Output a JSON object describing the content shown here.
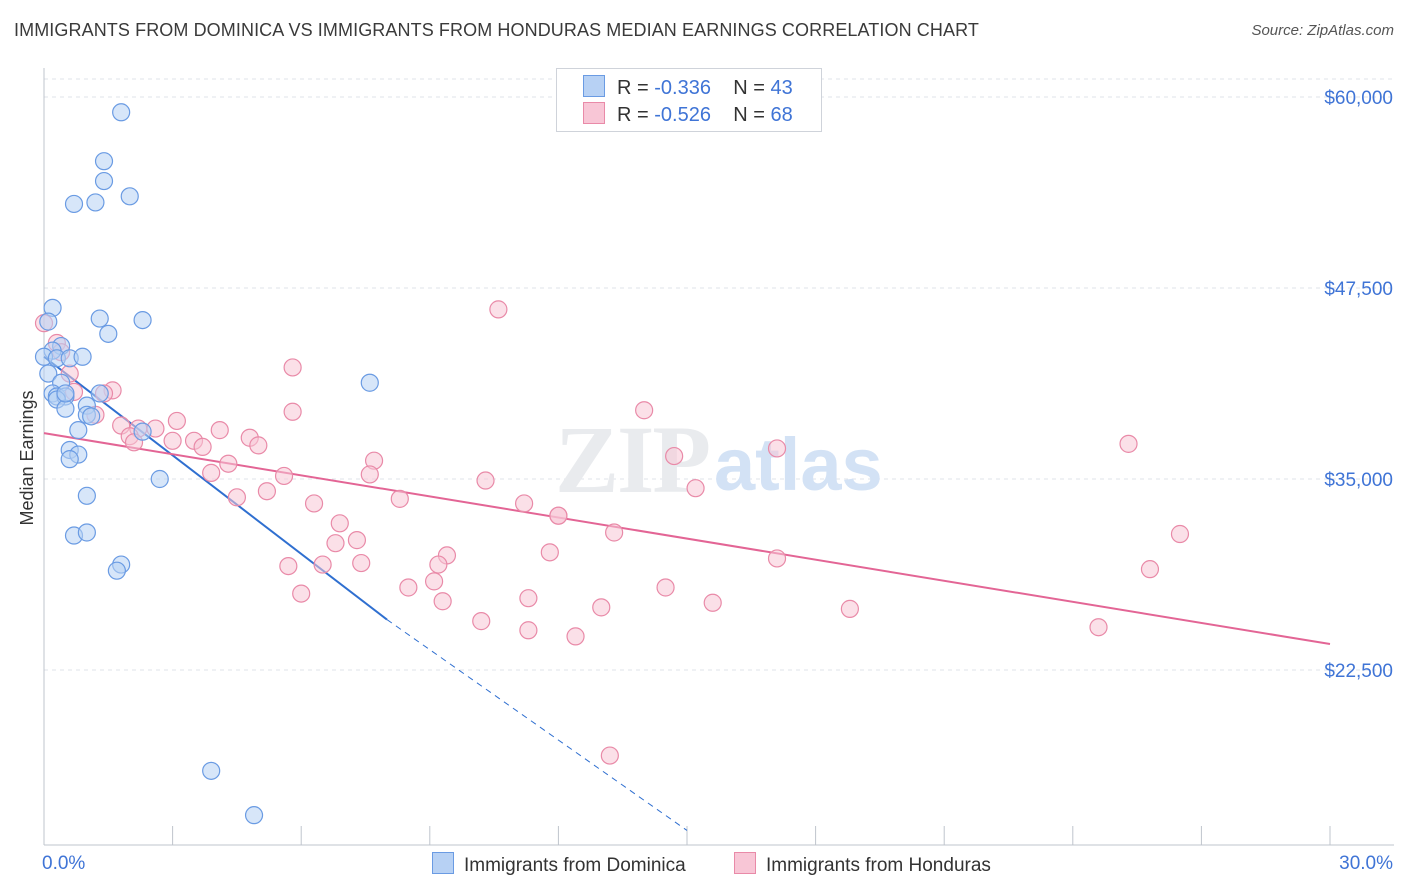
{
  "header": {
    "title": "IMMIGRANTS FROM DOMINICA VS IMMIGRANTS FROM HONDURAS MEDIAN EARNINGS CORRELATION CHART",
    "source": "Source: ZipAtlas.com"
  },
  "watermark": {
    "zip": "ZIP",
    "atlas": "atlas"
  },
  "colors": {
    "blue_fill": "#b7d1f4",
    "blue_stroke": "#6a9be3",
    "blue_line": "#2f6fd0",
    "pink_fill": "#f8c6d6",
    "pink_stroke": "#e98aa8",
    "pink_line": "#e36595",
    "accent_text": "#3f74d6",
    "grid": "#dfe3ea"
  },
  "stats_legend": {
    "rows": [
      {
        "r_label": "R =",
        "r_value": "-0.336",
        "n_label": "N =",
        "n_value": "43"
      },
      {
        "r_label": "R =",
        "r_value": "-0.526",
        "n_label": "N =",
        "n_value": "68"
      }
    ]
  },
  "chart_data": {
    "type": "scatter",
    "title": "IMMIGRANTS FROM DOMINICA VS IMMIGRANTS FROM HONDURAS MEDIAN EARNINGS CORRELATION CHART",
    "xlabel": "",
    "ylabel": "Median Earnings",
    "xlim": [
      0,
      30
    ],
    "ylim": [
      12000,
      62000
    ],
    "x_tick_labels": [
      "0.0%",
      "30.0%"
    ],
    "y_ticks": [
      22500,
      35000,
      47500,
      60000
    ],
    "y_tick_labels": [
      "$22,500",
      "$35,000",
      "$47,500",
      "$60,000"
    ],
    "grid": true,
    "legend_position": "bottom",
    "series": [
      {
        "name": "Immigrants from Dominica",
        "color": "blue",
        "r": -0.336,
        "n": 43,
        "points": [
          [
            1.8,
            59000
          ],
          [
            1.4,
            55800
          ],
          [
            1.4,
            54500
          ],
          [
            1.2,
            53100
          ],
          [
            0.7,
            53000
          ],
          [
            2.0,
            53500
          ],
          [
            0.2,
            46200
          ],
          [
            0.1,
            45300
          ],
          [
            1.3,
            45500
          ],
          [
            2.3,
            45400
          ],
          [
            1.5,
            44500
          ],
          [
            0.4,
            43700
          ],
          [
            0.2,
            43400
          ],
          [
            0.0,
            43000
          ],
          [
            0.3,
            42900
          ],
          [
            0.6,
            42900
          ],
          [
            0.1,
            41900
          ],
          [
            0.4,
            41300
          ],
          [
            7.6,
            41300
          ],
          [
            0.2,
            40600
          ],
          [
            0.3,
            40400
          ],
          [
            0.5,
            40400
          ],
          [
            0.3,
            40200
          ],
          [
            1.3,
            40600
          ],
          [
            1.0,
            39800
          ],
          [
            0.5,
            39600
          ],
          [
            1.0,
            39200
          ],
          [
            1.1,
            39100
          ],
          [
            0.8,
            38200
          ],
          [
            2.3,
            38100
          ],
          [
            0.6,
            36900
          ],
          [
            0.8,
            36600
          ],
          [
            0.6,
            36300
          ],
          [
            2.7,
            35000
          ],
          [
            1.0,
            33900
          ],
          [
            0.7,
            31300
          ],
          [
            1.0,
            31500
          ],
          [
            1.8,
            29400
          ],
          [
            1.7,
            29000
          ],
          [
            3.9,
            15900
          ],
          [
            4.9,
            13000
          ],
          [
            0.5,
            40600
          ],
          [
            0.9,
            43000
          ]
        ],
        "trend": {
          "x0": 0.0,
          "y0": 43000,
          "x1": 8.0,
          "y1": 25800,
          "dash_to_x": 15.0,
          "dash_to_y": 12000
        }
      },
      {
        "name": "Immigrants from Honduras",
        "color": "pink",
        "r": -0.526,
        "n": 68,
        "points": [
          [
            0.0,
            45200
          ],
          [
            0.3,
            43900
          ],
          [
            0.6,
            41900
          ],
          [
            1.6,
            40800
          ],
          [
            0.7,
            40700
          ],
          [
            1.4,
            40600
          ],
          [
            1.2,
            39200
          ],
          [
            1.8,
            38500
          ],
          [
            2.2,
            38300
          ],
          [
            2.6,
            38300
          ],
          [
            3.1,
            38800
          ],
          [
            4.1,
            38200
          ],
          [
            2.0,
            37800
          ],
          [
            2.1,
            37400
          ],
          [
            3.0,
            37500
          ],
          [
            3.5,
            37500
          ],
          [
            3.7,
            37100
          ],
          [
            4.8,
            37700
          ],
          [
            5.0,
            37200
          ],
          [
            4.3,
            36000
          ],
          [
            3.9,
            35400
          ],
          [
            7.7,
            36200
          ],
          [
            7.6,
            35300
          ],
          [
            5.6,
            35200
          ],
          [
            5.2,
            34200
          ],
          [
            4.5,
            33800
          ],
          [
            6.3,
            33400
          ],
          [
            8.3,
            33700
          ],
          [
            10.3,
            34900
          ],
          [
            11.2,
            33400
          ],
          [
            12.0,
            32600
          ],
          [
            6.9,
            32100
          ],
          [
            7.3,
            31000
          ],
          [
            6.8,
            30800
          ],
          [
            13.3,
            31500
          ],
          [
            11.8,
            30200
          ],
          [
            9.4,
            30000
          ],
          [
            6.5,
            29400
          ],
          [
            7.4,
            29500
          ],
          [
            9.2,
            29400
          ],
          [
            5.7,
            29300
          ],
          [
            17.1,
            29800
          ],
          [
            9.1,
            28300
          ],
          [
            8.5,
            27900
          ],
          [
            14.5,
            27900
          ],
          [
            6.0,
            27500
          ],
          [
            11.3,
            27200
          ],
          [
            9.3,
            27000
          ],
          [
            15.6,
            26900
          ],
          [
            13.0,
            26600
          ],
          [
            18.8,
            26500
          ],
          [
            10.2,
            25700
          ],
          [
            11.3,
            25100
          ],
          [
            12.4,
            24700
          ],
          [
            24.6,
            25300
          ],
          [
            25.8,
            29100
          ],
          [
            26.5,
            31400
          ],
          [
            25.3,
            37300
          ],
          [
            17.1,
            37000
          ],
          [
            14.7,
            36500
          ],
          [
            15.2,
            34400
          ],
          [
            14.0,
            39500
          ],
          [
            5.8,
            42300
          ],
          [
            10.6,
            46100
          ],
          [
            5.8,
            39400
          ],
          [
            13.2,
            16900
          ],
          [
            12.0,
            32600
          ],
          [
            0.4,
            43300
          ]
        ],
        "trend": {
          "x0": 0.0,
          "y0": 38000,
          "x1": 30.0,
          "y1": 24200
        }
      }
    ]
  }
}
